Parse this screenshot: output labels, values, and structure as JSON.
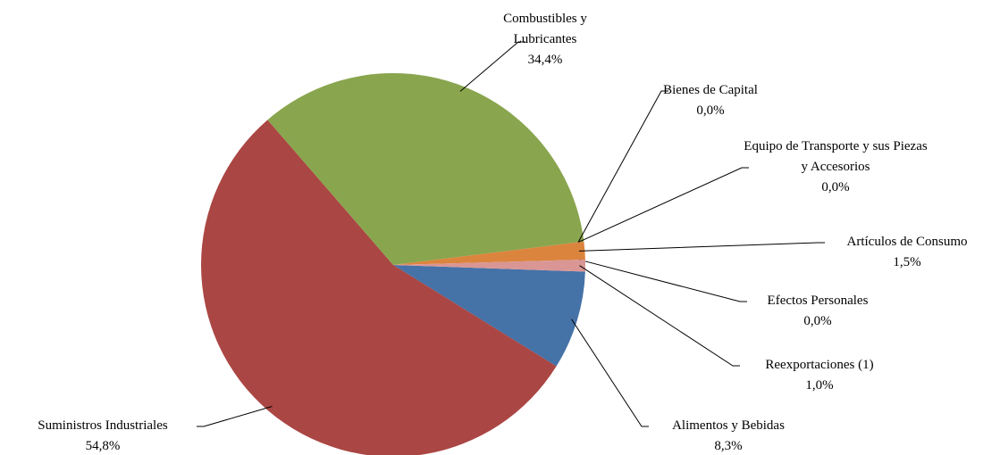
{
  "chart_data": {
    "type": "pie",
    "categories": [
      "Alimentos y Bebidas",
      "Suministros Industriales",
      "Combustibles y Lubricantes",
      "Bienes de Capital",
      "Equipo de Transporte y sus Piezas y Accesorios",
      "Artículos de Consumo",
      "Efectos Personales",
      "Reexportaciones (1)"
    ],
    "values": [
      8.3,
      54.8,
      34.4,
      0.0,
      0.0,
      1.5,
      0.0,
      1.0
    ],
    "value_labels": [
      "8,3%",
      "54,8%",
      "34,4%",
      "0,0%",
      "0,0%",
      "1,5%",
      "0,0%",
      "1,0%"
    ],
    "colors": [
      "#4572a7",
      "#aa4643",
      "#89a54e",
      "#7d5fa0",
      "#4198af",
      "#db843d",
      "#93a9cf",
      "#d99694"
    ]
  }
}
